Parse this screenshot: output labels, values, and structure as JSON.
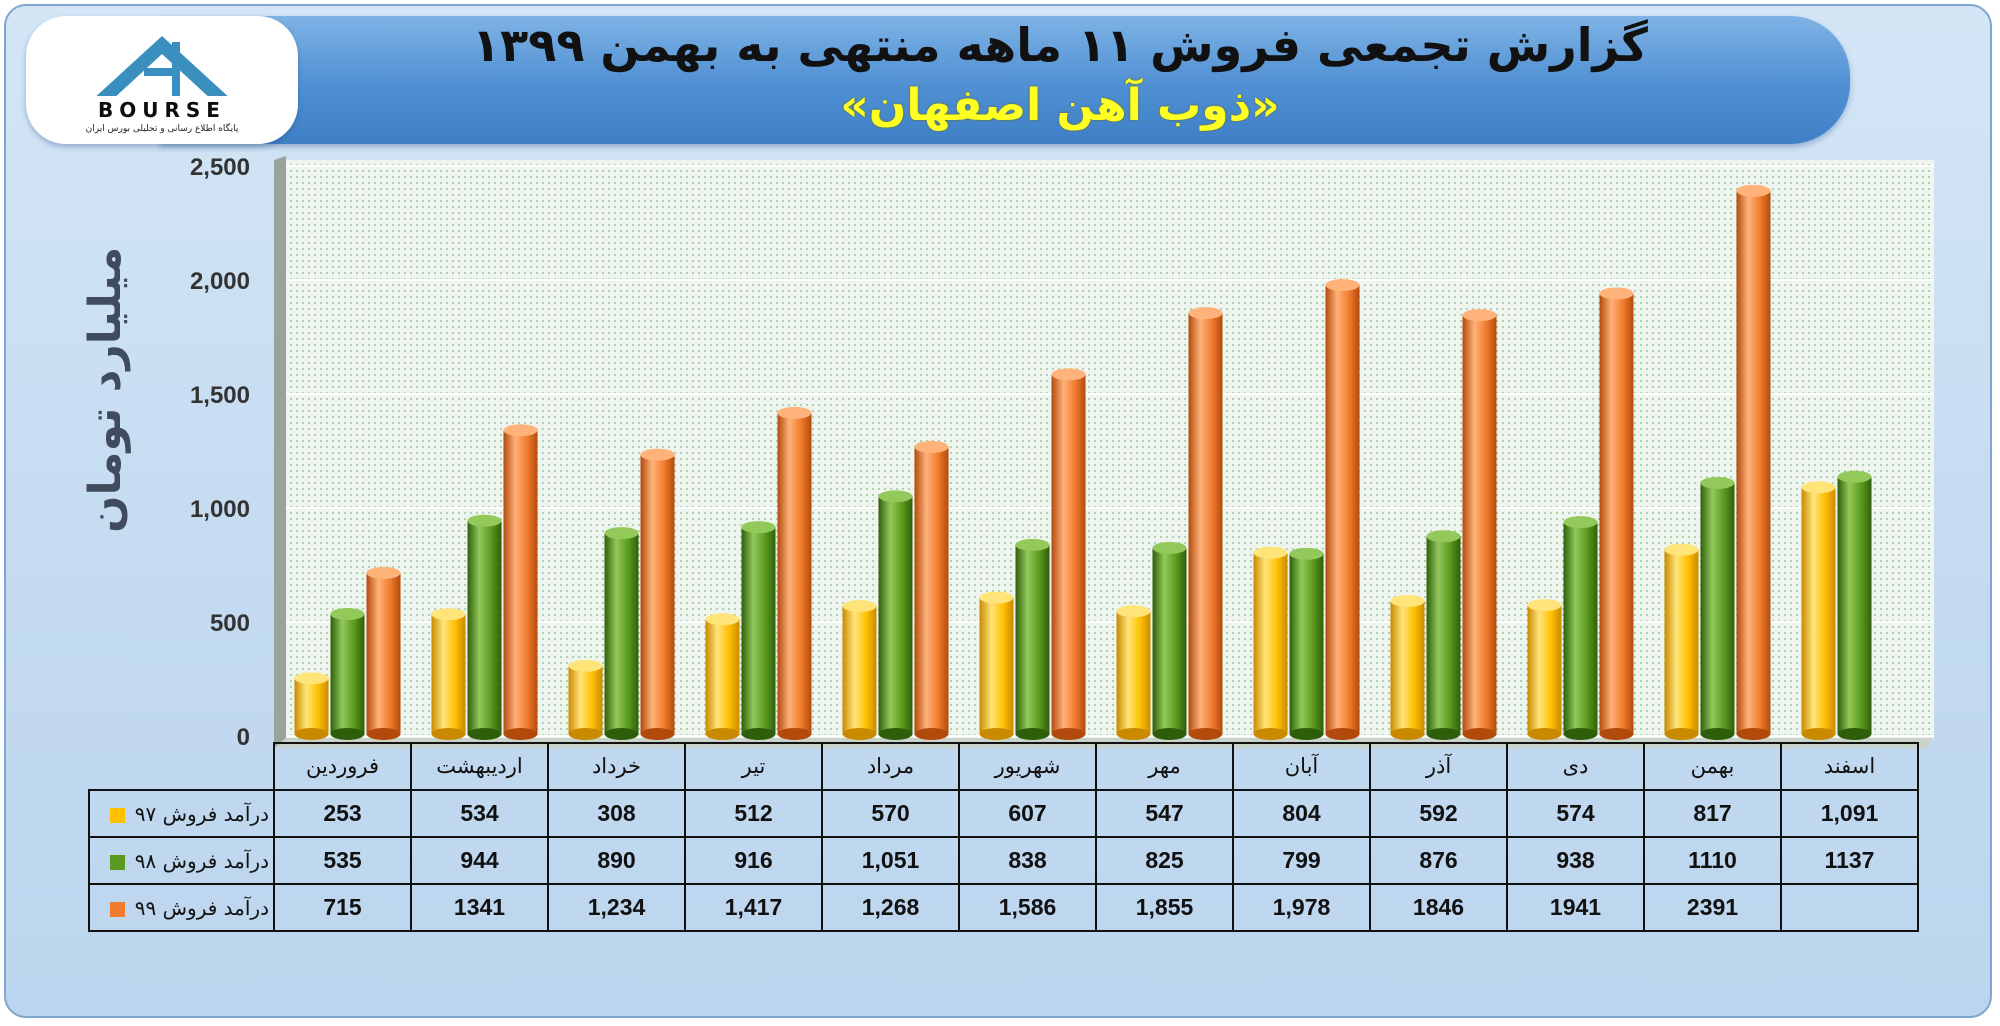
{
  "title": "گزارش تجمعی فروش ۱۱ ماهه منتهی به بهمن ۱۳۹۹",
  "subtitle": "«ذوب آهن اصفهان»",
  "logo": {
    "text": "BOURSE",
    "tagline": "پایگاه اطلاع رسانی و تحلیلی بورس ایران"
  },
  "chart_data": {
    "type": "bar",
    "ylabel": "میلیارد تومان",
    "ylim": [
      0,
      2500
    ],
    "yticks": [
      "0",
      "500",
      "1,000",
      "1,500",
      "2,000",
      "2,500"
    ],
    "grid": true,
    "categories": [
      "فروردین",
      "اردیبهشت",
      "خرداد",
      "تیر",
      "مرداد",
      "شهریور",
      "مهر",
      "آبان",
      "آذر",
      "دی",
      "بهمن",
      "اسفند"
    ],
    "series": [
      {
        "name": "درآمد فروش ۹۷",
        "color": "#ffc000",
        "values": [
          253,
          534,
          308,
          512,
          570,
          607,
          547,
          804,
          592,
          574,
          817,
          1091
        ],
        "labels": [
          "253",
          "534",
          "308",
          "512",
          "570",
          "607",
          "547",
          "804",
          "592",
          "574",
          "817",
          "1,091"
        ]
      },
      {
        "name": "درآمد فروش ۹۸",
        "color": "#5a9a1e",
        "values": [
          535,
          944,
          890,
          916,
          1051,
          838,
          825,
          799,
          876,
          938,
          1110,
          1137
        ],
        "labels": [
          "535",
          "944",
          "890",
          "916",
          "1,051",
          "838",
          "825",
          "799",
          "876",
          "938",
          "1110",
          "1137"
        ]
      },
      {
        "name": "درآمد فروش ۹۹",
        "color": "#f07b2c",
        "values": [
          715,
          1341,
          1234,
          1417,
          1268,
          1586,
          1855,
          1978,
          1846,
          1941,
          2391,
          null
        ],
        "labels": [
          "715",
          "1341",
          "1,234",
          "1,417",
          "1,268",
          "1,586",
          "1,855",
          "1,978",
          "1846",
          "1941",
          "2391",
          ""
        ]
      }
    ]
  }
}
